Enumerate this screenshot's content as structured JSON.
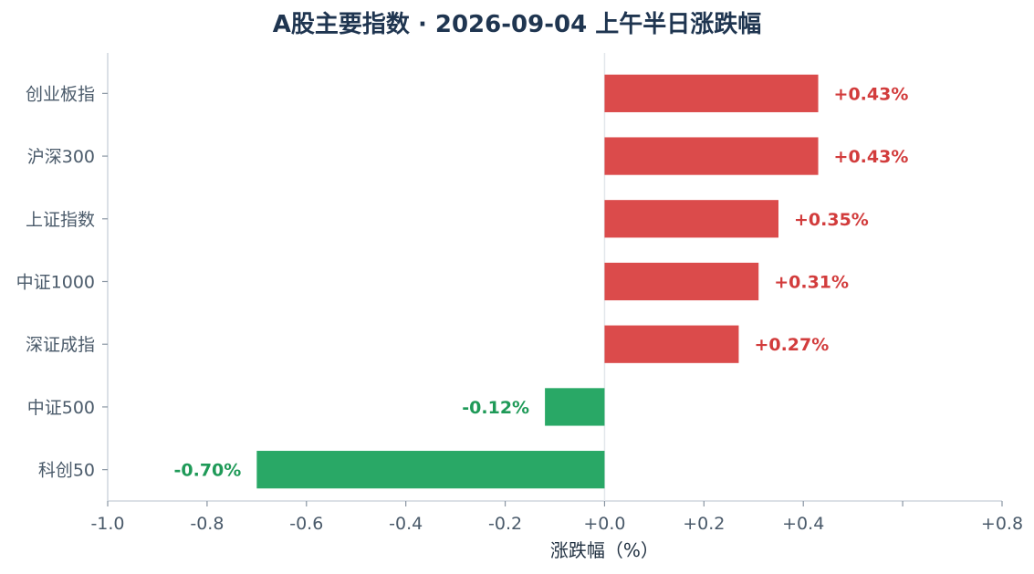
{
  "chart_data": {
    "type": "bar",
    "orientation": "horizontal",
    "title": "A股主要指数 · 2026-09-04 上午半日涨跌幅",
    "xlabel": "涨跌幅（%）",
    "ylabel": "",
    "categories": [
      "创业板指",
      "沪深300",
      "上证指数",
      "中证1000",
      "深证成指",
      "中证500",
      "科创50"
    ],
    "values": [
      0.43,
      0.43,
      0.35,
      0.31,
      0.27,
      -0.12,
      -0.7
    ],
    "value_labels": [
      "+0.43%",
      "+0.43%",
      "+0.35%",
      "+0.31%",
      "+0.27%",
      "-0.12%",
      "-0.70%"
    ],
    "xlim": [
      -1.0,
      0.8
    ],
    "xticks": [
      -1.0,
      -0.8,
      -0.6,
      -0.4,
      -0.2,
      0.0,
      0.2,
      0.4,
      0.6,
      0.8
    ],
    "xtick_labels": [
      "-1.0",
      "-0.8",
      "-0.6",
      "-0.4",
      "-0.2",
      "+0.0",
      "+0.2",
      "+0.4",
      "",
      "+0.8"
    ],
    "grid": false,
    "colors": {
      "positive": "#db4b4b",
      "negative": "#29a866",
      "positive_label": "#d23c3c",
      "negative_label": "#1f9a58"
    }
  }
}
